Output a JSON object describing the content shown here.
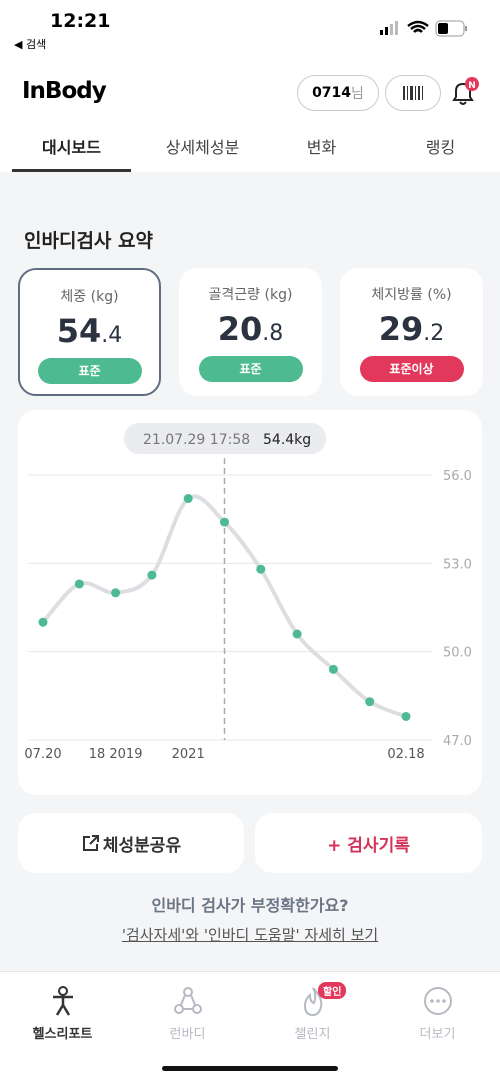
{
  "status_bar": {
    "time": "12:21",
    "back": "◀ 검색"
  },
  "header": {
    "logo": "InBody",
    "user": "0714",
    "user_suffix": "님"
  },
  "tabs": {
    "items": [
      "대시보드",
      "상세체성분",
      "변화",
      "랭킹"
    ],
    "active": 0
  },
  "summary": {
    "title": "인바디검사 요약",
    "cards": [
      {
        "label": "체중 (kg)",
        "int": "54",
        "dec": ".4",
        "status": "표준",
        "status_color": "#4dba91",
        "selected": true
      },
      {
        "label": "골격근량 (kg)",
        "int": "20",
        "dec": ".8",
        "status": "표준",
        "status_color": "#4dba91",
        "selected": false
      },
      {
        "label": "체지방률 (%)",
        "int": "29",
        "dec": ".2",
        "status": "표준이상",
        "status_color": "#e2385c",
        "selected": false
      }
    ]
  },
  "chart_data": {
    "type": "line",
    "tooltip_date": "21.07.29 17:58",
    "tooltip_value": "54.4kg",
    "categories": [
      "07.20",
      null,
      "18 2019",
      null,
      "2021",
      null,
      null,
      null,
      null,
      null,
      "02.18"
    ],
    "values": [
      51.0,
      52.3,
      52.0,
      52.6,
      55.2,
      54.4,
      52.8,
      50.6,
      49.4,
      48.3,
      47.8
    ],
    "highlight_index": 5,
    "color": "#dcdee2",
    "point_color": "#4dba91",
    "ylim": [
      47,
      56
    ],
    "yticks": [
      {
        "value": 56,
        "label": "56.0"
      },
      {
        "value": 53,
        "label": "53.0"
      },
      {
        "value": 50,
        "label": "50.0"
      },
      {
        "value": 47,
        "label": "47.0"
      }
    ],
    "grid": true
  },
  "buttons": {
    "share": "체성분공유",
    "record": "+ 검사기록"
  },
  "help": {
    "question": "인바디 검사가 부정확한가요?",
    "link": "'검사자세'와 '인바디 도움말' 자세히 보기"
  },
  "nav": {
    "items": [
      "헬스리포트",
      "런바디",
      "챌린지",
      "더보기"
    ],
    "badge": "할인",
    "active": 0
  }
}
